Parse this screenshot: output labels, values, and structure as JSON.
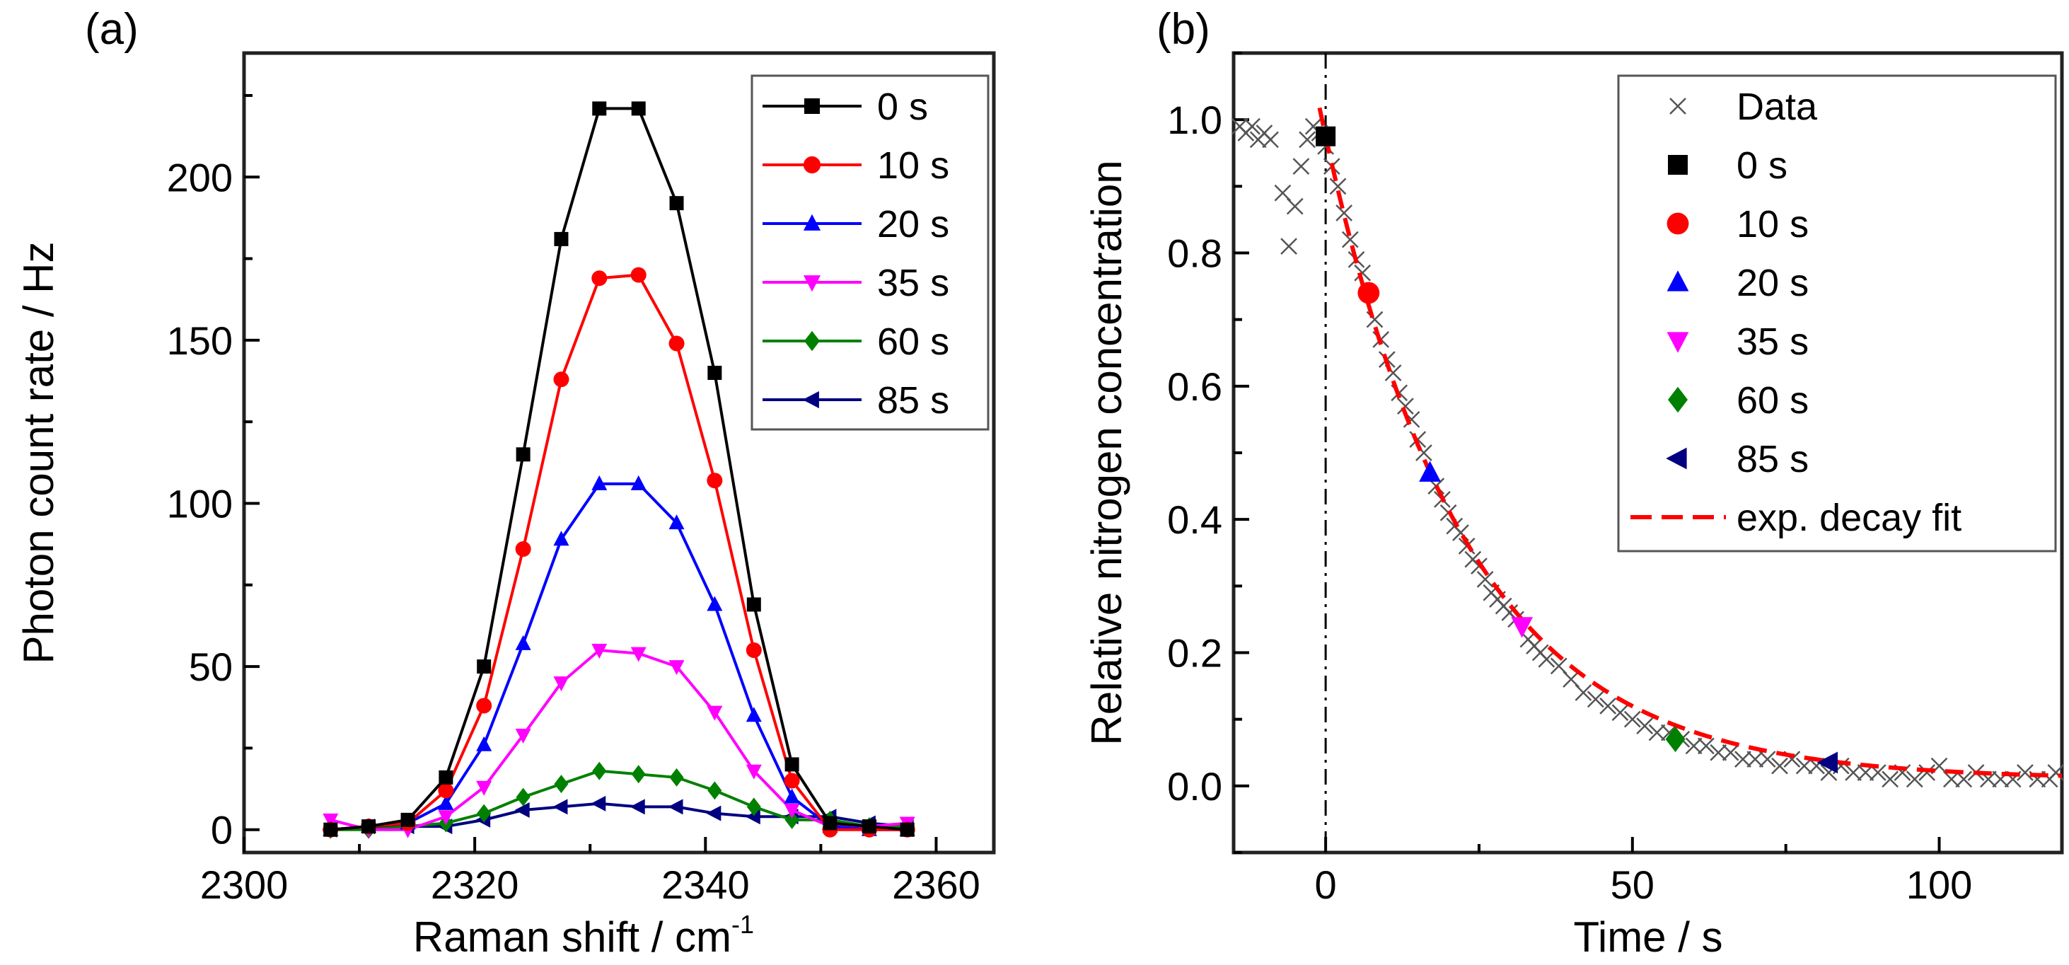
{
  "chart_data": [
    {
      "type": "line",
      "panel_label": "(a)",
      "xlabel": "Raman shift  /  cm",
      "xlabel_sup": "-1",
      "ylabel": "Photon count rate  /  Hz",
      "xlim": [
        2300,
        2365
      ],
      "ylim": [
        -7,
        238
      ],
      "xticks": [
        2300,
        2320,
        2340,
        2360
      ],
      "yticks": [
        0,
        50,
        100,
        150,
        200
      ],
      "legend": "top-right",
      "x": [
        2307.5,
        2310.8,
        2314.2,
        2317.5,
        2320.8,
        2324.2,
        2327.5,
        2330.8,
        2334.2,
        2337.5,
        2340.8,
        2344.2,
        2347.5,
        2350.8,
        2354.2,
        2357.5
      ],
      "series": [
        {
          "name": "0 s",
          "color": "#000000",
          "marker": "square",
          "values": [
            0,
            1,
            3,
            16,
            50,
            115,
            181,
            221,
            221,
            192,
            140,
            69,
            20,
            2,
            1,
            0
          ]
        },
        {
          "name": "10 s",
          "color": "#ff0000",
          "marker": "circle",
          "values": [
            0,
            1,
            2,
            12,
            38,
            86,
            138,
            169,
            170,
            149,
            107,
            55,
            15,
            0,
            0,
            0
          ]
        },
        {
          "name": "20 s",
          "color": "#0000ff",
          "marker": "triangle-up",
          "values": [
            0,
            1,
            2,
            8,
            26,
            57,
            89,
            106,
            106,
            94,
            69,
            35,
            10,
            1,
            0,
            0
          ]
        },
        {
          "name": "35 s",
          "color": "#ff00ff",
          "marker": "triangle-down",
          "values": [
            3,
            0,
            0,
            4,
            13,
            29,
            45,
            55,
            54,
            50,
            36,
            18,
            6,
            1,
            1,
            2
          ]
        },
        {
          "name": "60 s",
          "color": "#008000",
          "marker": "diamond",
          "values": [
            0,
            0,
            1,
            2,
            5,
            10,
            14,
            18,
            17,
            16,
            12,
            7,
            3,
            3,
            1,
            1
          ]
        },
        {
          "name": "85 s",
          "color": "#000080",
          "marker": "triangle-left",
          "values": [
            0,
            1,
            1,
            1,
            3,
            6,
            7,
            8,
            7,
            7,
            5,
            4,
            4,
            4,
            2,
            1
          ]
        }
      ]
    },
    {
      "type": "scatter",
      "panel_label": "(b)",
      "xlabel": "Time  /  s",
      "ylabel": "Relative nitrogen concentration",
      "xlim": [
        -15,
        120
      ],
      "ylim": [
        -0.1,
        1.1
      ],
      "xticks": [
        0,
        50,
        100
      ],
      "yticks": [
        0.0,
        0.2,
        0.4,
        0.6,
        0.8,
        1.0
      ],
      "legend": "top-right",
      "vline_x": 0,
      "data": {
        "name": "Data",
        "color": "#555555",
        "x": [
          -14,
          -13,
          -12,
          -11,
          -10,
          -9,
          -7,
          -6,
          -5,
          -4,
          -3,
          -2,
          -1,
          0,
          1,
          2,
          3,
          4,
          5,
          6,
          8,
          9,
          10,
          11,
          12,
          13,
          14,
          15,
          16,
          18,
          19,
          20,
          21,
          22,
          23,
          24,
          25,
          26,
          27,
          28,
          29,
          30,
          31,
          33,
          34,
          35,
          36,
          38,
          40,
          42,
          44,
          46,
          48,
          50,
          52,
          54,
          56,
          58,
          60,
          62,
          64,
          66,
          68,
          70,
          72,
          74,
          76,
          78,
          80,
          82,
          84,
          86,
          88,
          90,
          92,
          94,
          96,
          98,
          100,
          102,
          104,
          106,
          108,
          110,
          112,
          114,
          116,
          118,
          119
        ],
        "y": [
          0.99,
          0.98,
          0.99,
          0.97,
          0.98,
          0.97,
          0.89,
          0.81,
          0.87,
          0.93,
          0.97,
          0.99,
          0.98,
          0.96,
          0.93,
          0.9,
          0.86,
          0.82,
          0.79,
          0.77,
          0.7,
          0.67,
          0.64,
          0.62,
          0.59,
          0.57,
          0.55,
          0.52,
          0.5,
          0.45,
          0.43,
          0.41,
          0.39,
          0.38,
          0.36,
          0.34,
          0.33,
          0.31,
          0.29,
          0.28,
          0.27,
          0.26,
          0.25,
          0.22,
          0.21,
          0.2,
          0.19,
          0.18,
          0.16,
          0.14,
          0.13,
          0.12,
          0.11,
          0.1,
          0.09,
          0.08,
          0.08,
          0.07,
          0.06,
          0.06,
          0.05,
          0.05,
          0.04,
          0.04,
          0.04,
          0.03,
          0.04,
          0.03,
          0.03,
          0.02,
          0.03,
          0.02,
          0.02,
          0.02,
          0.01,
          0.02,
          0.01,
          0.02,
          0.03,
          0.01,
          0.01,
          0.02,
          0.01,
          0.01,
          0.01,
          0.02,
          0.01,
          0.01,
          0.02
        ]
      },
      "markers": [
        {
          "name": "0 s",
          "color": "#000000",
          "marker": "square",
          "x": 0,
          "y": 0.975
        },
        {
          "name": "10 s",
          "color": "#ff0000",
          "marker": "circle",
          "x": 7,
          "y": 0.74
        },
        {
          "name": "20 s",
          "color": "#0000ff",
          "marker": "triangle-up",
          "x": 17,
          "y": 0.47
        },
        {
          "name": "35 s",
          "color": "#ff00ff",
          "marker": "triangle-down",
          "x": 32,
          "y": 0.24
        },
        {
          "name": "60 s",
          "color": "#008000",
          "marker": "diamond",
          "x": 57,
          "y": 0.07
        },
        {
          "name": "85 s",
          "color": "#000080",
          "marker": "triangle-left",
          "x": 82,
          "y": 0.035
        }
      ],
      "fit": {
        "name": "exp. decay fit",
        "color": "#ff0000",
        "amplitude": 0.965,
        "tau": 23,
        "offset": 0.01,
        "x_start": -1
      }
    }
  ]
}
